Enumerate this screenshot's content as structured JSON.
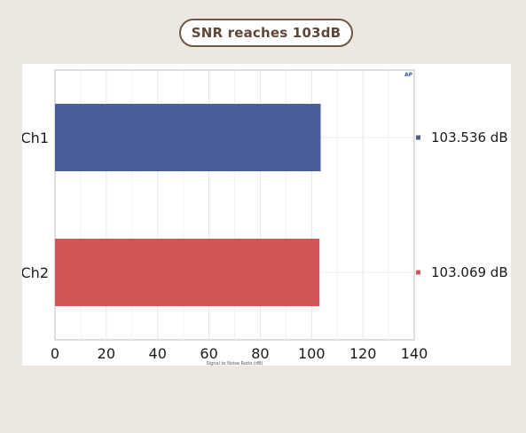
{
  "header": {
    "title": "SNR reaches 103dB"
  },
  "chart_data": {
    "type": "bar",
    "orientation": "horizontal",
    "categories": [
      "Ch1",
      "Ch2"
    ],
    "values": [
      103.536,
      103.069
    ],
    "value_labels": [
      "103.536 dB",
      "103.069 dB"
    ],
    "colors": [
      "#4a5f9a",
      "#d05656"
    ],
    "title": "",
    "xlabel": "Signal to Noise Ratio (dB)",
    "ylabel": "",
    "xlim": [
      0,
      140
    ],
    "xticks": [
      0,
      20,
      40,
      60,
      80,
      100,
      120,
      140
    ],
    "grid": true,
    "logo_text": "AP"
  }
}
